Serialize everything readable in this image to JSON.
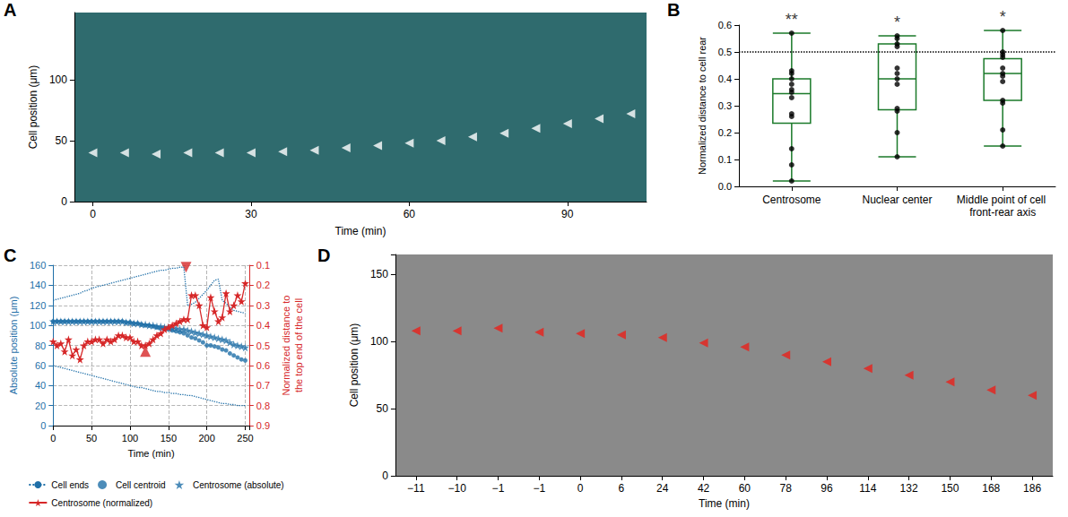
{
  "chart_data": [
    {
      "panel": "A",
      "type": "scatter",
      "x_label": "Time (min)",
      "y_label": "Cell position (μm)",
      "x": [
        0,
        6,
        12,
        18,
        24,
        30,
        36,
        42,
        48,
        54,
        60,
        66,
        72,
        78,
        84,
        90,
        96,
        102
      ],
      "values": [
        40,
        40,
        39,
        40,
        40,
        40,
        41,
        42,
        44,
        46,
        48,
        50,
        53,
        56,
        60,
        64,
        68,
        72
      ],
      "xlim": [
        -3.5,
        105
      ],
      "xticks": [
        0,
        30,
        60,
        90
      ],
      "ylim": [
        0,
        155
      ],
      "yticks": [
        0,
        50,
        100
      ],
      "color": "#ffffff",
      "marker": "triangle-left"
    },
    {
      "panel": "B",
      "type": "boxplot",
      "y_label": "Normalized distance to cell rear",
      "categories": [
        "Centrosome",
        "Nuclear center",
        "Middle point of cell front-rear axis"
      ],
      "boxes": [
        [
          0.02,
          0.235,
          0.345,
          0.4,
          0.57
        ],
        [
          0.11,
          0.285,
          0.4,
          0.53,
          0.56
        ],
        [
          0.15,
          0.32,
          0.42,
          0.475,
          0.58
        ]
      ],
      "points": [
        [
          0.57,
          0.43,
          0.42,
          0.4,
          0.38,
          0.36,
          0.35,
          0.33,
          0.27,
          0.26,
          0.14,
          0.08,
          0.02
        ],
        [
          0.56,
          0.55,
          0.53,
          0.52,
          0.44,
          0.42,
          0.4,
          0.38,
          0.29,
          0.28,
          0.2,
          0.11
        ],
        [
          0.58,
          0.5,
          0.49,
          0.48,
          0.44,
          0.42,
          0.41,
          0.39,
          0.32,
          0.31,
          0.21,
          0.15
        ]
      ],
      "annotations": [
        "**",
        "*",
        "*"
      ],
      "reference_line": 0.5,
      "ylim": [
        0,
        0.6
      ],
      "yticks": [
        {
          "value": 0,
          "label": "0.0"
        },
        0.1,
        0.2,
        0.3,
        0.4,
        0.5,
        0.6
      ],
      "color": "#1b7a2a"
    },
    {
      "panel": "C",
      "type": "line",
      "x_label": "Time (min)",
      "y_label": "Absolute position (μm)",
      "y2_label": "Normalized distance to the top end of the cell",
      "x": [
        0,
        5,
        10,
        15,
        20,
        25,
        30,
        35,
        40,
        45,
        50,
        55,
        60,
        65,
        70,
        75,
        80,
        85,
        90,
        95,
        100,
        105,
        110,
        115,
        120,
        125,
        130,
        135,
        140,
        145,
        150,
        155,
        160,
        165,
        170,
        175,
        180,
        185,
        190,
        195,
        200,
        205,
        210,
        215,
        220,
        225,
        230,
        235,
        240,
        245,
        250
      ],
      "series": [
        {
          "name": "Cell ends",
          "color": "#1f6fa8",
          "line_style": "dotted",
          "marker": "none",
          "values": [
            125,
            126,
            127,
            128,
            129,
            130,
            131,
            132,
            134,
            135,
            137,
            138,
            139,
            140,
            141,
            142,
            143,
            144,
            145,
            146,
            147,
            148,
            149,
            150,
            151,
            152,
            153,
            154,
            155,
            155,
            156,
            157,
            157,
            158,
            158,
            120,
            121,
            123,
            127,
            131,
            135,
            140,
            145,
            146,
            125,
            122,
            118,
            115,
            114,
            113,
            112
          ]
        },
        {
          "name": "Cell ends",
          "color": "#1f6fa8",
          "line_style": "dotted",
          "marker": "none",
          "values": [
            60,
            59,
            58,
            57,
            56,
            55,
            54,
            53,
            52,
            51,
            50,
            49,
            48,
            47,
            46,
            45,
            44,
            43,
            42,
            41,
            40,
            39,
            38,
            38,
            37,
            36,
            35,
            34,
            34,
            33,
            33,
            32,
            32,
            31,
            31,
            30,
            30,
            29,
            28,
            27,
            26,
            25,
            24,
            23,
            22,
            22,
            21,
            21,
            20,
            20,
            20
          ]
        },
        {
          "name": "Cell centroid",
          "type": "scatter",
          "color": "#1f6fa8",
          "marker": "circle",
          "values": [
            104,
            104,
            104,
            104,
            104,
            104,
            104,
            104,
            104,
            104,
            104,
            104,
            104,
            104,
            104,
            104,
            104,
            104,
            104,
            103,
            103,
            102,
            102,
            101,
            100,
            100,
            99,
            98,
            97,
            97,
            96,
            95,
            94,
            93,
            92,
            90,
            88,
            87,
            85,
            83,
            80,
            80,
            79,
            78,
            76,
            75,
            72,
            70,
            68,
            66,
            65
          ]
        },
        {
          "name": "Centrosome (absolute)",
          "type": "scatter",
          "color": "#1f6fa8",
          "marker": "star",
          "values": [
            104,
            104,
            104,
            104,
            104,
            104,
            104,
            104,
            104,
            104,
            104,
            104,
            104,
            104,
            104,
            104,
            104,
            104,
            104,
            103,
            103,
            102,
            102,
            101,
            101,
            100,
            100,
            99,
            99,
            98,
            98,
            97,
            97,
            96,
            96,
            95,
            94,
            93,
            92,
            91,
            90,
            89,
            88,
            87,
            86,
            85,
            83,
            81,
            80,
            79,
            78
          ]
        },
        {
          "name": "Centrosome (normalized)",
          "axis": "y2",
          "color": "#d62728",
          "marker": "star",
          "line_style": "solid",
          "values": [
            0.48,
            0.5,
            0.49,
            0.53,
            0.47,
            0.55,
            0.52,
            0.57,
            0.5,
            0.48,
            0.48,
            0.47,
            0.47,
            0.49,
            0.47,
            0.48,
            0.47,
            0.45,
            0.45,
            0.46,
            0.46,
            0.48,
            0.48,
            0.5,
            0.5,
            0.49,
            0.47,
            0.45,
            0.44,
            0.42,
            0.41,
            0.4,
            0.39,
            0.38,
            0.37,
            0.37,
            0.25,
            0.25,
            0.3,
            0.4,
            0.41,
            0.26,
            0.33,
            0.38,
            0.36,
            0.24,
            0.33,
            0.3,
            0.25,
            0.28,
            0.19
          ]
        }
      ],
      "events": [
        {
          "x": 120,
          "y": 0.53,
          "marker": "triangle-up"
        },
        {
          "x": 173,
          "y": 0.11,
          "marker": "triangle-down"
        }
      ],
      "xlim": [
        0,
        255
      ],
      "xticks": [
        0,
        50,
        100,
        150,
        200,
        250
      ],
      "ylim": [
        0,
        160
      ],
      "yticks": [
        0,
        20,
        40,
        60,
        80,
        100,
        120,
        140,
        160
      ],
      "y2lim": [
        0.9,
        0.1
      ],
      "y2ticks": [
        0.1,
        0.2,
        0.3,
        0.4,
        0.5,
        0.6,
        0.7,
        0.8,
        0.9
      ],
      "grid": true,
      "legend": "bottom"
    },
    {
      "panel": "D",
      "type": "scatter",
      "x_label": "Time (min)",
      "y_label": "Cell position (μm)",
      "categories": [
        "−11",
        "−10",
        "−1",
        "−1",
        "0",
        "6",
        "24",
        "42",
        "60",
        "78",
        "96",
        "114",
        "132",
        "150",
        "168",
        "186"
      ],
      "values": [
        108,
        108,
        110,
        107,
        106,
        105,
        103,
        99,
        96,
        90,
        85,
        80,
        75,
        70,
        64,
        60
      ],
      "ylim": [
        0,
        165
      ],
      "yticks": [
        0,
        50,
        100,
        150
      ],
      "color": "#e8201a",
      "marker": "triangle-left"
    }
  ]
}
